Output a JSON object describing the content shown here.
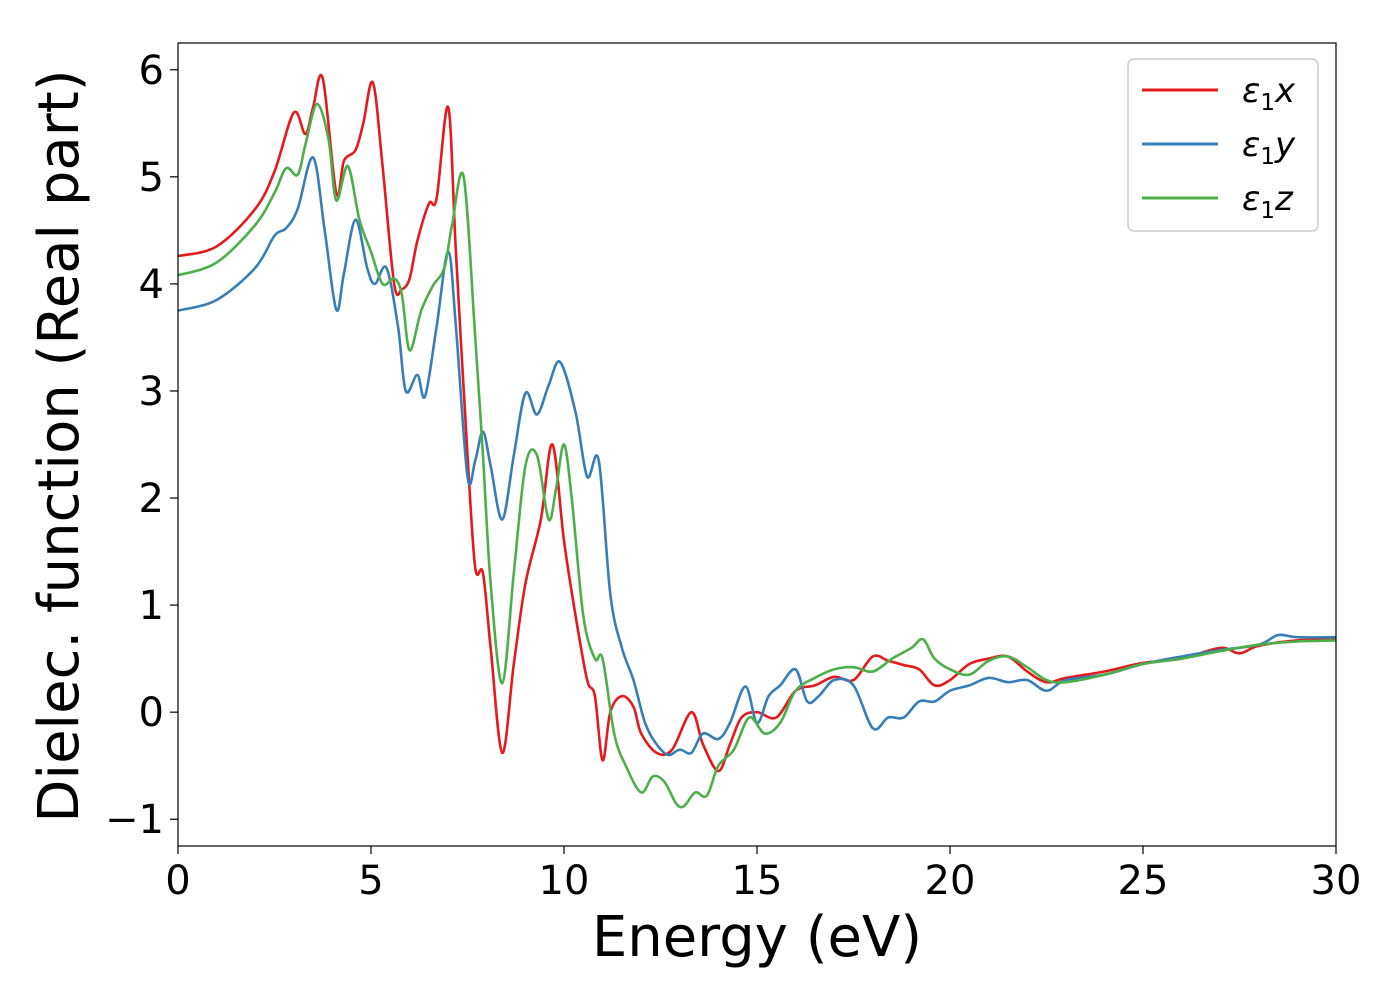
{
  "chart_data": {
    "type": "line",
    "title": "",
    "xlabel": "Energy (eV)",
    "ylabel": "Dielec. function (Real part)",
    "xlim": [
      0,
      30
    ],
    "ylim": [
      -1.25,
      6.25
    ],
    "xticks": [
      0,
      5,
      10,
      15,
      20,
      25,
      30
    ],
    "xtick_labels": [
      "0",
      "5",
      "10",
      "15",
      "20",
      "25",
      "30"
    ],
    "yticks": [
      -1,
      0,
      1,
      2,
      3,
      4,
      5,
      6
    ],
    "ytick_labels": [
      "−1",
      "0",
      "1",
      "2",
      "3",
      "4",
      "5",
      "6"
    ],
    "grid": false,
    "legend": "top-right",
    "series": [
      {
        "name": "ε₁x",
        "label_main": "ε",
        "label_sub": "1",
        "label_tail": "x",
        "color": "#e41a1c",
        "x": [
          0,
          1,
          2,
          2.5,
          3,
          3.3,
          3.5,
          3.75,
          4.1,
          4.3,
          4.6,
          4.8,
          5.05,
          5.3,
          5.6,
          5.8,
          6.0,
          6.2,
          6.5,
          6.7,
          7.0,
          7.2,
          7.5,
          7.7,
          7.9,
          8.1,
          8.4,
          8.7,
          9.0,
          9.4,
          9.7,
          10.0,
          10.3,
          10.6,
          10.8,
          11.0,
          11.2,
          11.5,
          11.8,
          12.0,
          12.4,
          12.8,
          13.3,
          13.6,
          14.0,
          14.3,
          14.6,
          15.0,
          15.5,
          16.0,
          16.5,
          17.0,
          17.5,
          18.0,
          18.4,
          18.8,
          19.2,
          19.6,
          20.0,
          20.5,
          21.0,
          21.5,
          22.0,
          22.5,
          23.0,
          24.0,
          25.0,
          26.0,
          27.0,
          27.5,
          28.0,
          29.0,
          30.0
        ],
        "y": [
          4.26,
          4.35,
          4.7,
          5.05,
          5.6,
          5.4,
          5.65,
          5.92,
          4.85,
          5.15,
          5.25,
          5.5,
          5.88,
          5.1,
          4.0,
          3.95,
          4.05,
          4.4,
          4.75,
          4.8,
          5.65,
          4.3,
          2.4,
          1.35,
          1.3,
          0.6,
          -0.38,
          0.45,
          1.2,
          1.8,
          2.5,
          1.6,
          0.9,
          0.3,
          0.15,
          -0.45,
          0.0,
          0.15,
          0.05,
          -0.2,
          -0.38,
          -0.35,
          0.0,
          -0.3,
          -0.55,
          -0.3,
          -0.05,
          0.0,
          -0.05,
          0.2,
          0.25,
          0.33,
          0.3,
          0.52,
          0.48,
          0.44,
          0.4,
          0.25,
          0.3,
          0.45,
          0.5,
          0.52,
          0.38,
          0.28,
          0.32,
          0.38,
          0.46,
          0.5,
          0.6,
          0.55,
          0.62,
          0.67,
          0.68
        ]
      },
      {
        "name": "ε₁y",
        "label_main": "ε",
        "label_sub": "1",
        "label_tail": "y",
        "color": "#377eb8",
        "x": [
          0,
          1,
          2,
          2.5,
          2.8,
          3.1,
          3.5,
          3.8,
          4.1,
          4.3,
          4.6,
          4.9,
          5.1,
          5.4,
          5.7,
          5.9,
          6.2,
          6.4,
          6.7,
          7.0,
          7.2,
          7.5,
          7.7,
          7.9,
          8.1,
          8.4,
          8.7,
          9.0,
          9.3,
          9.6,
          9.9,
          10.3,
          10.6,
          10.9,
          11.2,
          11.5,
          11.8,
          12.1,
          12.4,
          12.7,
          13.0,
          13.3,
          13.6,
          14.0,
          14.3,
          14.7,
          15.0,
          15.3,
          15.6,
          16.0,
          16.3,
          16.6,
          17.0,
          17.5,
          18.0,
          18.4,
          18.8,
          19.2,
          19.6,
          20.0,
          20.5,
          21.0,
          21.5,
          22.0,
          22.5,
          23.0,
          24.0,
          25.0,
          26.0,
          27.0,
          28.0,
          28.5,
          29.0,
          30.0
        ],
        "y": [
          3.75,
          3.85,
          4.15,
          4.45,
          4.52,
          4.7,
          5.18,
          4.5,
          3.76,
          4.1,
          4.6,
          4.15,
          4.0,
          4.15,
          3.6,
          3.0,
          3.15,
          2.95,
          3.6,
          4.3,
          3.6,
          2.2,
          2.35,
          2.62,
          2.3,
          1.8,
          2.4,
          2.98,
          2.78,
          3.05,
          3.27,
          2.8,
          2.2,
          2.35,
          1.1,
          0.6,
          0.3,
          -0.1,
          -0.3,
          -0.4,
          -0.35,
          -0.38,
          -0.2,
          -0.25,
          -0.1,
          0.24,
          -0.1,
          0.15,
          0.25,
          0.4,
          0.1,
          0.15,
          0.3,
          0.25,
          -0.15,
          -0.05,
          -0.05,
          0.1,
          0.1,
          0.2,
          0.25,
          0.32,
          0.28,
          0.3,
          0.2,
          0.3,
          0.35,
          0.45,
          0.52,
          0.58,
          0.63,
          0.72,
          0.7,
          0.7
        ]
      },
      {
        "name": "ε₁z",
        "label_main": "ε",
        "label_sub": "1",
        "label_tail": "z",
        "color": "#4daf4a",
        "x": [
          0,
          1,
          2,
          2.5,
          2.8,
          3.1,
          3.3,
          3.6,
          3.9,
          4.1,
          4.4,
          4.7,
          5.0,
          5.3,
          5.6,
          5.8,
          6.0,
          6.3,
          6.6,
          6.9,
          7.1,
          7.4,
          7.7,
          7.9,
          8.1,
          8.4,
          8.7,
          9.0,
          9.3,
          9.6,
          9.8,
          10.0,
          10.2,
          10.5,
          10.8,
          11.0,
          11.3,
          11.6,
          12.0,
          12.3,
          12.6,
          12.9,
          13.1,
          13.4,
          13.7,
          14.0,
          14.4,
          14.8,
          15.2,
          15.6,
          16.0,
          16.5,
          17.0,
          17.5,
          18.0,
          18.5,
          19.0,
          19.3,
          19.6,
          20.0,
          20.5,
          21.0,
          21.5,
          22.0,
          22.5,
          23.0,
          24.0,
          25.0,
          26.0,
          27.0,
          28.0,
          29.0,
          30.0
        ],
        "y": [
          4.08,
          4.2,
          4.55,
          4.85,
          5.08,
          5.02,
          5.3,
          5.68,
          5.35,
          4.78,
          5.1,
          4.6,
          4.3,
          4.0,
          4.05,
          3.9,
          3.38,
          3.75,
          3.98,
          4.15,
          4.55,
          5.0,
          3.5,
          2.4,
          1.2,
          0.27,
          1.3,
          2.3,
          2.4,
          1.8,
          2.1,
          2.5,
          2.0,
          0.9,
          0.5,
          0.5,
          -0.2,
          -0.5,
          -0.75,
          -0.6,
          -0.65,
          -0.85,
          -0.88,
          -0.75,
          -0.78,
          -0.5,
          -0.35,
          -0.05,
          -0.2,
          -0.1,
          0.2,
          0.32,
          0.4,
          0.42,
          0.38,
          0.5,
          0.6,
          0.68,
          0.5,
          0.4,
          0.35,
          0.48,
          0.52,
          0.42,
          0.3,
          0.28,
          0.35,
          0.45,
          0.5,
          0.57,
          0.63,
          0.66,
          0.67
        ]
      }
    ]
  }
}
